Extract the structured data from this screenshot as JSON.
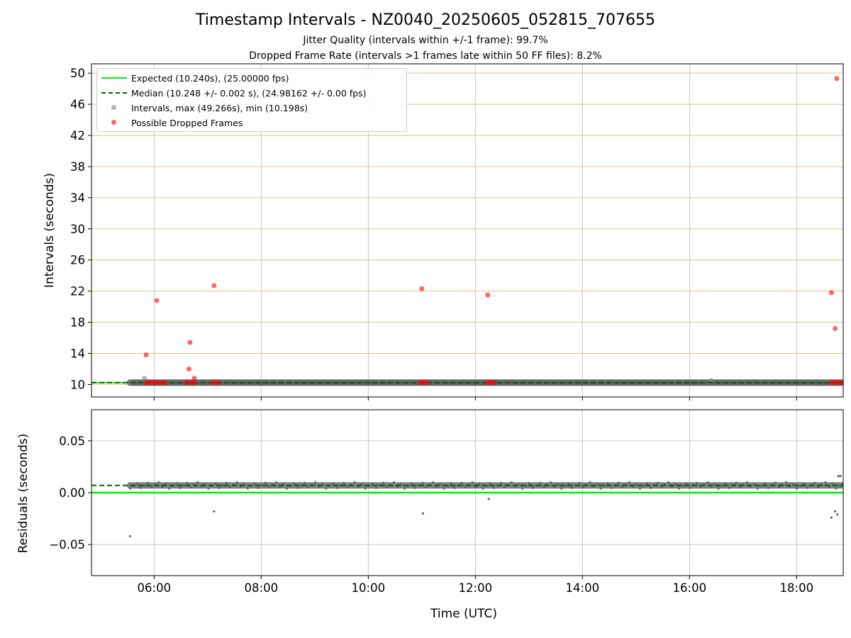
{
  "figure": {
    "title": "Timestamp Intervals - NZ0040_20250605_052815_707655",
    "subtitle_1": "Jitter Quality (intervals within +/-1 frame): 99.7%",
    "subtitle_2": "Dropped Frame Rate (intervals >1 frames late within 50 FF files): 8.2%"
  },
  "legend": {
    "expected": "Expected (10.240s), (25.00000 fps)",
    "median": "Median (10.248 +/- 0.002 s), (24.98162 +/- 0.00 fps)",
    "intervals": "Intervals, max (49.266s), min (10.198s)",
    "dropped": "Possible Dropped Frames"
  },
  "colors": {
    "expected": "#00ee00",
    "median": "#006400",
    "intervals": "#808080",
    "dropped": "#ff0000",
    "gold_grid": "#d4b55a"
  },
  "chart_data": [
    {
      "type": "scatter",
      "ylabel": "Intervals (seconds)",
      "xlim": [
        4.83,
        18.87
      ],
      "ylim": [
        8.4,
        51.2
      ],
      "yticks": [
        10,
        14,
        18,
        22,
        26,
        30,
        34,
        38,
        42,
        46,
        50
      ],
      "expected_line": 10.24,
      "median_line": 10.248,
      "interval_band": {
        "x_start": 5.55,
        "x_end": 18.87,
        "value": 10.248
      },
      "interval_outliers": [
        {
          "x": 5.82,
          "y": 10.8
        },
        {
          "x": 16.4,
          "y": 10.5
        }
      ],
      "dropped_frames": [
        {
          "x": 5.85,
          "y": 13.8
        },
        {
          "x": 6.05,
          "y": 20.8
        },
        {
          "x": 6.65,
          "y": 12.0
        },
        {
          "x": 6.67,
          "y": 15.4
        },
        {
          "x": 6.75,
          "y": 10.8
        },
        {
          "x": 7.12,
          "y": 22.7
        },
        {
          "x": 11.0,
          "y": 22.3
        },
        {
          "x": 12.23,
          "y": 21.5
        },
        {
          "x": 18.65,
          "y": 21.8
        },
        {
          "x": 18.72,
          "y": 17.2
        },
        {
          "x": 18.75,
          "y": 49.3
        },
        {
          "x": 5.85,
          "y": 10.25
        },
        {
          "x": 5.9,
          "y": 10.25
        },
        {
          "x": 5.95,
          "y": 10.25
        },
        {
          "x": 6.0,
          "y": 10.25
        },
        {
          "x": 6.05,
          "y": 10.25
        },
        {
          "x": 6.1,
          "y": 10.25
        },
        {
          "x": 6.15,
          "y": 10.25
        },
        {
          "x": 6.2,
          "y": 10.25
        },
        {
          "x": 6.6,
          "y": 10.25
        },
        {
          "x": 6.65,
          "y": 10.25
        },
        {
          "x": 6.7,
          "y": 10.25
        },
        {
          "x": 6.75,
          "y": 10.25
        },
        {
          "x": 7.1,
          "y": 10.25
        },
        {
          "x": 7.15,
          "y": 10.25
        },
        {
          "x": 7.2,
          "y": 10.25
        },
        {
          "x": 10.98,
          "y": 10.25
        },
        {
          "x": 11.02,
          "y": 10.25
        },
        {
          "x": 11.06,
          "y": 10.25
        },
        {
          "x": 11.1,
          "y": 10.25
        },
        {
          "x": 12.23,
          "y": 10.25
        },
        {
          "x": 12.27,
          "y": 10.25
        },
        {
          "x": 12.31,
          "y": 10.25
        },
        {
          "x": 12.35,
          "y": 10.25
        },
        {
          "x": 18.65,
          "y": 10.25
        },
        {
          "x": 18.7,
          "y": 10.25
        },
        {
          "x": 18.75,
          "y": 10.25
        },
        {
          "x": 18.8,
          "y": 10.25
        },
        {
          "x": 18.85,
          "y": 10.25
        }
      ]
    },
    {
      "type": "scatter",
      "xlabel": "Time (UTC)",
      "ylabel": "Residuals (seconds)",
      "xlim": [
        4.83,
        18.87
      ],
      "ylim": [
        -0.08,
        0.08
      ],
      "yticks": [
        -0.05,
        0.0,
        0.05
      ],
      "ytick_labels": [
        "−0.05",
        "0.00",
        "0.05"
      ],
      "xticks": [
        6,
        8,
        10,
        12,
        14,
        16,
        18
      ],
      "xtick_labels": [
        "06:00",
        "08:00",
        "10:00",
        "12:00",
        "14:00",
        "16:00",
        "18:00"
      ],
      "expected_line": 0.0,
      "median_line": 0.007,
      "residual_band": {
        "x_start": 5.55,
        "x_end": 18.87,
        "value": 0.007
      },
      "residual_outliers": [
        {
          "x": 5.55,
          "y": -0.042
        },
        {
          "x": 7.12,
          "y": -0.018
        },
        {
          "x": 11.02,
          "y": -0.02
        },
        {
          "x": 12.25,
          "y": -0.006
        },
        {
          "x": 18.65,
          "y": -0.024
        },
        {
          "x": 18.72,
          "y": -0.018
        },
        {
          "x": 18.76,
          "y": -0.021
        },
        {
          "x": 18.78,
          "y": 0.016
        },
        {
          "x": 18.82,
          "y": 0.016
        }
      ]
    }
  ]
}
